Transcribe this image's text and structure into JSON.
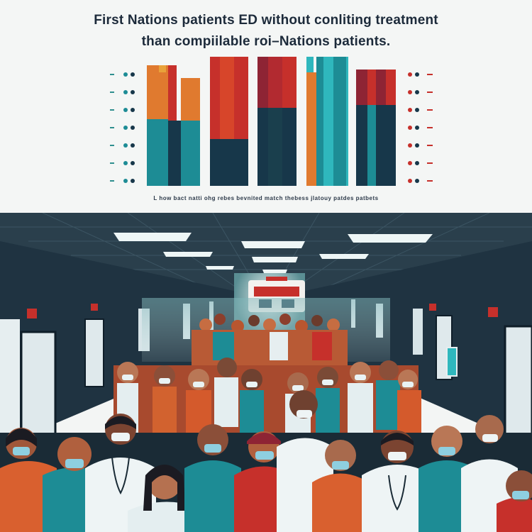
{
  "title_line1": "First Nations patients ED without conliting treatment",
  "title_line2": "than compiilable roi–Nations patients.",
  "caption": "L how bact natti ohg rebes bevnited match thebess jlatouy patdes patbets",
  "colors": {
    "teal": "#1d8c95",
    "navy": "#17374a",
    "red": "#c6302b",
    "orange": "#e07a2f",
    "maroon": "#8e2434",
    "cyan": "#2fb7bd"
  },
  "icons": [
    "dot-icon",
    "ambulance-icon",
    "ed-sign-icon",
    "stethoscope-icon",
    "mask-icon"
  ]
}
